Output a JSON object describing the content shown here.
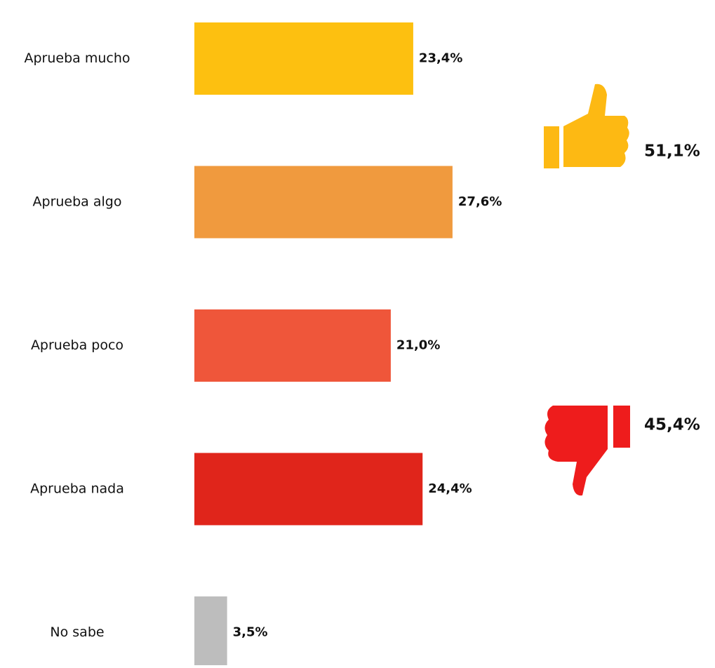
{
  "chart_data": {
    "type": "hbar",
    "categories": [
      "Aprueba mucho",
      "Aprueba algo",
      "Aprueba poco",
      "Aprueba nada",
      "No sabe"
    ],
    "values": [
      23.4,
      27.6,
      21.0,
      24.4,
      3.5
    ],
    "value_labels": [
      "23,4%",
      "27,6%",
      "21,0%",
      "24,4%",
      "3,5%"
    ],
    "colors": [
      "#fdc010",
      "#f09a3e",
      "#ef563a",
      "#e0251b",
      "#bdbdbd"
    ],
    "annotations": [
      "51,1%",
      "45,4%"
    ]
  }
}
